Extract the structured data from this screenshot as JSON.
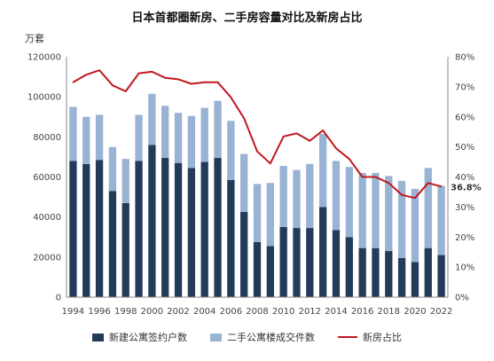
{
  "chart_data": {
    "type": "bar",
    "title": "日本首都圈新房、二手房容量对比及新房占比",
    "y_left_unit": "万套",
    "x": [
      1994,
      1995,
      1996,
      1997,
      1998,
      1999,
      2000,
      2001,
      2002,
      2003,
      2004,
      2005,
      2006,
      2007,
      2008,
      2009,
      2010,
      2011,
      2012,
      2013,
      2014,
      2015,
      2016,
      2017,
      2018,
      2019,
      2020,
      2021,
      2022
    ],
    "x_tick_labels": [
      "1994",
      "1996",
      "1998",
      "2000",
      "2002",
      "2004",
      "2006",
      "2008",
      "2010",
      "2012",
      "2014",
      "2016",
      "2018",
      "2020",
      "2022"
    ],
    "y_left_ticks": [
      "0",
      "20000",
      "40000",
      "60000",
      "80000",
      "100000",
      "120000"
    ],
    "y_right_ticks": [
      "0%",
      "10%",
      "20%",
      "30%",
      "40%",
      "50%",
      "60%",
      "70%",
      "80%"
    ],
    "ylim_left": [
      0,
      120000
    ],
    "ylim_right": [
      0,
      80
    ],
    "stacked": true,
    "series": [
      {
        "name": "新建公寓签约户数",
        "axis": "left",
        "type": "bar",
        "color": "#243a59",
        "values": [
          68000,
          66500,
          68500,
          53000,
          47000,
          68000,
          76000,
          69500,
          67000,
          64500,
          67500,
          69500,
          58500,
          42500,
          27500,
          25500,
          35000,
          34500,
          34500,
          45000,
          33500,
          30000,
          24500,
          24500,
          23000,
          19500,
          17500,
          24500,
          21000
        ]
      },
      {
        "name": "二手公寓楼成交件数",
        "axis": "left",
        "type": "bar",
        "color": "#98b3d3",
        "values": [
          27000,
          23500,
          22500,
          22000,
          22000,
          23000,
          25500,
          26000,
          25000,
          26000,
          27000,
          28500,
          29500,
          29000,
          29000,
          31500,
          30500,
          29000,
          32000,
          36500,
          34500,
          35000,
          37500,
          37500,
          37500,
          38500,
          36500,
          40000,
          34500
        ]
      },
      {
        "name": "新房占比",
        "axis": "right",
        "type": "line",
        "color": "#c0181e",
        "values": [
          71.5,
          74,
          75.5,
          70.5,
          68.5,
          74.5,
          75,
          73,
          72.5,
          71,
          71.5,
          71.5,
          66.5,
          59.5,
          48.5,
          44.5,
          53.5,
          54.5,
          52,
          55.5,
          49.5,
          46,
          40,
          40,
          38,
          34,
          33,
          38,
          36.8
        ]
      }
    ],
    "annotations": [
      "36.8%"
    ],
    "legend_position": "bottom",
    "grid": false
  }
}
